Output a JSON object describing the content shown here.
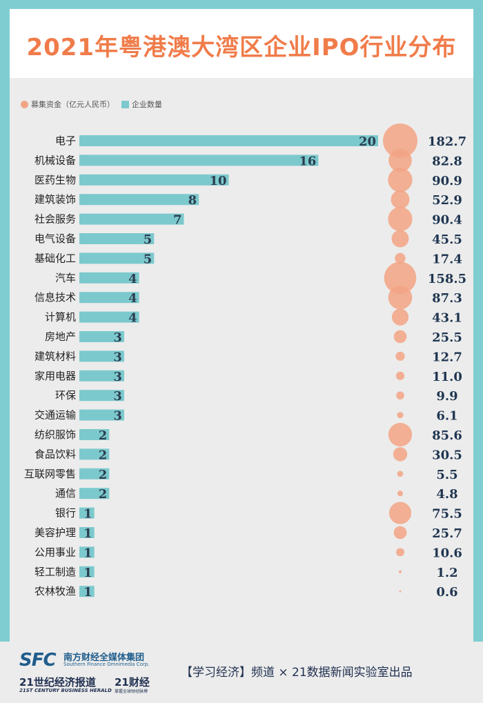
{
  "title": "2021年粤港澳大湾区企业IPO行业分布",
  "legend": {
    "funds": "募集资金（亿元人民币）",
    "count": "企业数量"
  },
  "colors": {
    "bar": "#7cc9cd",
    "bubble": "#f3a485",
    "title": "#f07c4a",
    "frame": "#7fcdd0"
  },
  "chart_data": {
    "type": "bar",
    "orientation": "horizontal",
    "categories": [
      "电子",
      "机械设备",
      "医药生物",
      "建筑装饰",
      "社会服务",
      "电气设备",
      "基础化工",
      "汽车",
      "信息技术",
      "计算机",
      "房地产",
      "建筑材料",
      "家用电器",
      "环保",
      "交通运输",
      "纺织服饰",
      "食品饮料",
      "互联网零售",
      "通信",
      "银行",
      "美容护理",
      "公用事业",
      "轻工制造",
      "农林牧渔"
    ],
    "series": [
      {
        "name": "企业数量",
        "values": [
          20,
          16,
          10,
          8,
          7,
          5,
          5,
          4,
          4,
          4,
          3,
          3,
          3,
          3,
          3,
          2,
          2,
          2,
          2,
          1,
          1,
          1,
          1,
          1
        ]
      },
      {
        "name": "募集资金（亿元人民币）",
        "values": [
          182.7,
          82.8,
          90.9,
          52.9,
          90.4,
          45.5,
          17.4,
          158.5,
          87.3,
          43.1,
          25.5,
          12.7,
          11.0,
          9.9,
          6.1,
          85.6,
          30.5,
          5.5,
          4.8,
          75.5,
          25.7,
          10.6,
          1.2,
          0.6
        ],
        "labels": [
          "182.7",
          "82.8",
          "90.9",
          "52.9",
          "90.4",
          "45.5",
          "17.4",
          "158.5",
          "87.3",
          "43.1",
          "25.5",
          "12.7",
          "11.0",
          "9.9",
          "6.1",
          "85.6",
          "30.5",
          "5.5",
          "4.8",
          "75.5",
          "25.7",
          "10.6",
          "1.2",
          "0.6"
        ]
      }
    ]
  },
  "footer": {
    "sfc_logo": "SFC",
    "sfc_cn": "南方财经全媒体集团",
    "sfc_en": "Southern Finance Omnimedia Corp.",
    "herald_cn": "21世纪经济报道",
    "herald_en": "21ST CENTURY BUSINESS HERALD",
    "caijing": "21财经",
    "caijing_sub": "掌握全球财经脉搏",
    "credit": "【学习经济】频道 × 21数据新闻实验室出品"
  }
}
